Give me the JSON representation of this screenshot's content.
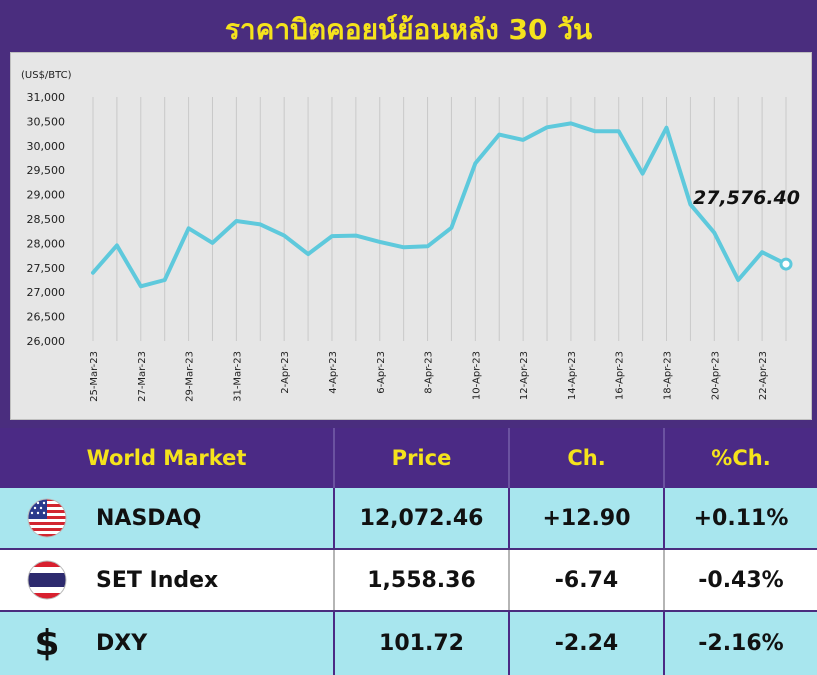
{
  "title": "ราคาบิตคอยน์ย้อนหลัง 30 วัน",
  "chart_data": {
    "type": "line",
    "title": "ราคาบิตคอยน์ย้อนหลัง 30 วัน",
    "ylabel": "(US$/BTC)",
    "xlabel": "",
    "ylim": [
      26000,
      31000
    ],
    "yticks": [
      26000,
      26500,
      27000,
      27500,
      28000,
      28500,
      29000,
      29500,
      30000,
      30500,
      31000
    ],
    "ytick_labels": [
      "26,000",
      "26,500",
      "27,000",
      "27,500",
      "28,000",
      "28,500",
      "29,000",
      "29,500",
      "30,000",
      "30,500",
      "31,000"
    ],
    "xtick_labels": [
      "25-Mar-23",
      "27-Mar-23",
      "29-Mar-23",
      "31-Mar-23",
      "2-Apr-23",
      "4-Apr-23",
      "6-Apr-23",
      "8-Apr-23",
      "10-Apr-23",
      "12-Apr-23",
      "14-Apr-23",
      "16-Apr-23",
      "18-Apr-23",
      "20-Apr-23",
      "22-Apr-23"
    ],
    "grid": "vertical",
    "x": [
      "25-Mar-23",
      "26-Mar-23",
      "27-Mar-23",
      "28-Mar-23",
      "29-Mar-23",
      "30-Mar-23",
      "31-Mar-23",
      "1-Apr-23",
      "2-Apr-23",
      "3-Apr-23",
      "4-Apr-23",
      "5-Apr-23",
      "6-Apr-23",
      "7-Apr-23",
      "8-Apr-23",
      "9-Apr-23",
      "10-Apr-23",
      "11-Apr-23",
      "12-Apr-23",
      "13-Apr-23",
      "14-Apr-23",
      "15-Apr-23",
      "16-Apr-23",
      "17-Apr-23",
      "18-Apr-23",
      "19-Apr-23",
      "20-Apr-23",
      "21-Apr-23",
      "22-Apr-23",
      "23-Apr-23"
    ],
    "series": [
      {
        "color": "#5ec9dc",
        "values": [
          27400,
          27960,
          27120,
          27250,
          28310,
          28010,
          28460,
          28390,
          28160,
          27780,
          28150,
          28160,
          28030,
          27920,
          27940,
          28320,
          29640,
          30230,
          30120,
          30380,
          30460,
          30300,
          30300,
          29430,
          30370,
          28800,
          28220,
          27250,
          27820,
          27576.4
        ]
      }
    ],
    "annotations": [
      {
        "x": "23-Apr-23",
        "text": "27,576.40"
      }
    ]
  },
  "table": {
    "headers": [
      "World Market",
      "Price",
      "Ch.",
      "%Ch."
    ],
    "rows": [
      {
        "icon": "us-flag-icon",
        "name": "NASDAQ",
        "price": "12,072.46",
        "ch": "+12.90",
        "pct": "+0.11%"
      },
      {
        "icon": "thai-flag-icon",
        "name": "SET Index",
        "price": "1,558.36",
        "ch": "-6.74",
        "pct": "-0.43%"
      },
      {
        "icon": "dollar-icon",
        "dollar": "$",
        "name": "DXY",
        "price": "101.72",
        "ch": "-2.24",
        "pct": "-2.16%"
      }
    ]
  },
  "colors": {
    "background": "#4a2d7e",
    "title": "#f5e31c",
    "line": "#5ec9dc",
    "row_highlight": "#a8e6ee"
  }
}
